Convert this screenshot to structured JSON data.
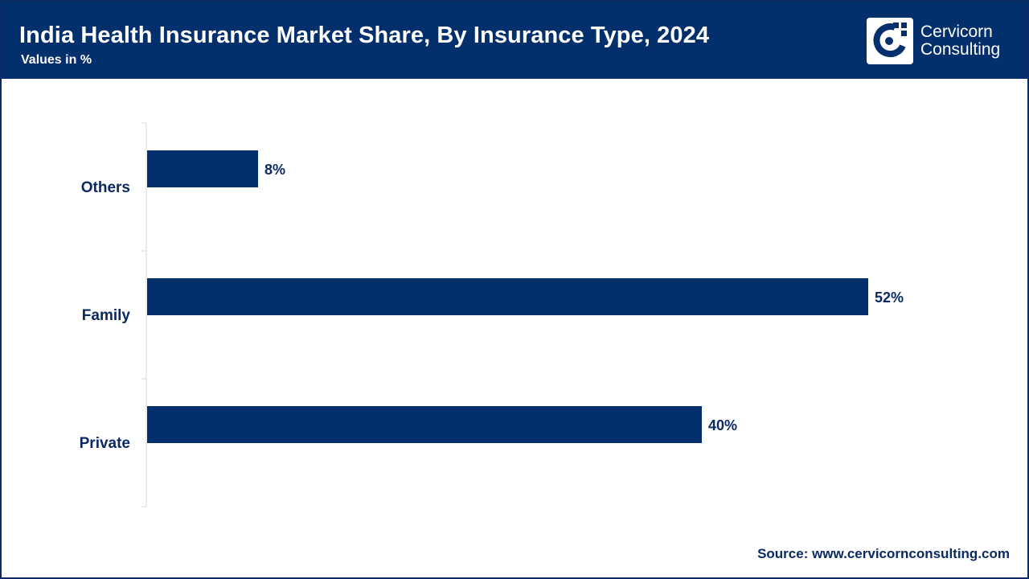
{
  "header": {
    "title": "India Health Insurance Market Share, By Insurance Type, 2024",
    "subtitle": "Values in %",
    "logo_line1": "Cervicorn",
    "logo_line2": "Consulting",
    "logo_icon": "cervicorn-logo-icon"
  },
  "footer": {
    "source": "Source: www.cervicornconsulting.com"
  },
  "colors": {
    "header_bg": "#03306c",
    "bar": "#03306c",
    "text": "#0b2a63"
  },
  "chart_data": {
    "type": "bar",
    "orientation": "horizontal",
    "categories": [
      "Others",
      "Family",
      "Private"
    ],
    "values": [
      8,
      52,
      40
    ],
    "data_labels": [
      "8%",
      "52%",
      "40%"
    ],
    "xlim": [
      0,
      52
    ],
    "grid": false,
    "legend": "none"
  }
}
